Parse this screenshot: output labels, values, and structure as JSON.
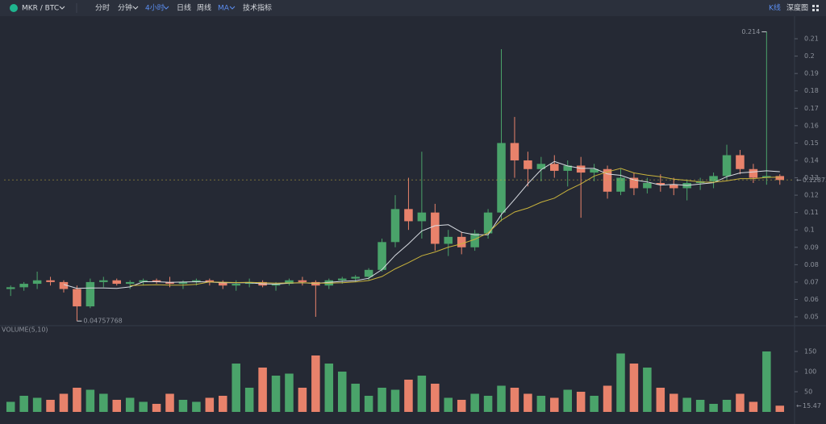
{
  "toolbar": {
    "pair": "MKR / BTC",
    "items": [
      "分时",
      "分钟",
      "4小时",
      "日线",
      "周线",
      "MA",
      "技术指标"
    ],
    "active": [
      "4小时",
      "MA"
    ],
    "right": [
      "K线",
      "深度图"
    ]
  },
  "chart_data": {
    "type": "candlestick",
    "up_color": "#4aa36a",
    "down_color": "#e8826b",
    "open": [
      0.066,
      0.067,
      0.069,
      0.071,
      0.07,
      0.066,
      0.056,
      0.07,
      0.071,
      0.069,
      0.07,
      0.071,
      0.07,
      0.069,
      0.07,
      0.071,
      0.07,
      0.068,
      0.069,
      0.07,
      0.068,
      0.069,
      0.071,
      0.07,
      0.068,
      0.071,
      0.072,
      0.073,
      0.077,
      0.093,
      0.112,
      0.105,
      0.11,
      0.092,
      0.096,
      0.09,
      0.098,
      0.11,
      0.15,
      0.14,
      0.135,
      0.138,
      0.134,
      0.137,
      0.133,
      0.135,
      0.122,
      0.13,
      0.124,
      0.127,
      0.126,
      0.124,
      0.127,
      0.128,
      0.131,
      0.143,
      0.135,
      0.13,
      0.131
    ],
    "high": [
      0.068,
      0.07,
      0.076,
      0.073,
      0.071,
      0.068,
      0.072,
      0.073,
      0.072,
      0.071,
      0.072,
      0.072,
      0.073,
      0.071,
      0.072,
      0.072,
      0.071,
      0.071,
      0.072,
      0.071,
      0.07,
      0.072,
      0.073,
      0.071,
      0.072,
      0.073,
      0.074,
      0.078,
      0.095,
      0.12,
      0.13,
      0.145,
      0.115,
      0.1,
      0.099,
      0.1,
      0.112,
      0.204,
      0.165,
      0.145,
      0.142,
      0.143,
      0.14,
      0.142,
      0.138,
      0.137,
      0.135,
      0.133,
      0.13,
      0.132,
      0.13,
      0.129,
      0.13,
      0.133,
      0.149,
      0.146,
      0.138,
      0.214,
      0.132
    ],
    "low": [
      0.062,
      0.065,
      0.066,
      0.068,
      0.064,
      0.04757768,
      0.055,
      0.067,
      0.068,
      0.066,
      0.068,
      0.069,
      0.067,
      0.066,
      0.068,
      0.068,
      0.066,
      0.065,
      0.067,
      0.067,
      0.065,
      0.068,
      0.068,
      0.05,
      0.066,
      0.069,
      0.07,
      0.071,
      0.076,
      0.09,
      0.1,
      0.095,
      0.088,
      0.085,
      0.086,
      0.088,
      0.095,
      0.105,
      0.13,
      0.125,
      0.128,
      0.13,
      0.125,
      0.107,
      0.128,
      0.118,
      0.12,
      0.12,
      0.121,
      0.122,
      0.12,
      0.117,
      0.123,
      0.124,
      0.129,
      0.132,
      0.127,
      0.126,
      0.126
    ],
    "close": [
      0.067,
      0.069,
      0.071,
      0.07,
      0.066,
      0.056,
      0.07,
      0.071,
      0.069,
      0.07,
      0.071,
      0.07,
      0.069,
      0.07,
      0.071,
      0.07,
      0.068,
      0.069,
      0.07,
      0.068,
      0.069,
      0.071,
      0.07,
      0.068,
      0.071,
      0.072,
      0.073,
      0.077,
      0.093,
      0.112,
      0.105,
      0.11,
      0.092,
      0.096,
      0.09,
      0.098,
      0.11,
      0.15,
      0.14,
      0.135,
      0.138,
      0.134,
      0.137,
      0.133,
      0.135,
      0.122,
      0.13,
      0.124,
      0.127,
      0.126,
      0.124,
      0.127,
      0.128,
      0.131,
      0.143,
      0.135,
      0.13,
      0.131,
      0.128732
    ],
    "volume": [
      25,
      40,
      35,
      30,
      45,
      60,
      55,
      45,
      30,
      35,
      25,
      20,
      45,
      30,
      25,
      35,
      40,
      120,
      60,
      110,
      90,
      95,
      60,
      140,
      120,
      100,
      70,
      40,
      60,
      55,
      80,
      90,
      70,
      35,
      30,
      45,
      40,
      65,
      60,
      45,
      40,
      35,
      55,
      50,
      40,
      65,
      145,
      120,
      110,
      60,
      45,
      35,
      30,
      20,
      30,
      45,
      25,
      150,
      15.47
    ],
    "ma_lines": [
      {
        "color": "#d9dde3",
        "values": [
          null,
          null,
          null,
          null,
          0.0686,
          0.0664,
          0.0666,
          0.0666,
          0.0664,
          0.0672,
          0.0702,
          0.0702,
          0.0698,
          0.07,
          0.0702,
          0.07,
          0.0696,
          0.0696,
          0.0696,
          0.069,
          0.0688,
          0.0694,
          0.0696,
          0.0692,
          0.0698,
          0.0704,
          0.0708,
          0.0722,
          0.0772,
          0.0854,
          0.092,
          0.0994,
          0.1024,
          0.103,
          0.0986,
          0.0972,
          0.0972,
          0.1088,
          0.1176,
          0.1266,
          0.1346,
          0.1394,
          0.1368,
          0.1354,
          0.1354,
          0.1322,
          0.1314,
          0.1288,
          0.1276,
          0.1258,
          0.1262,
          0.1256,
          0.1264,
          0.1272,
          0.1306,
          0.1328,
          0.1334,
          0.134,
          0.1335
        ]
      },
      {
        "color": "#c9b33c",
        "values": [
          null,
          null,
          null,
          null,
          null,
          null,
          null,
          null,
          null,
          0.0679,
          0.0683,
          0.0684,
          0.0682,
          0.0682,
          0.0687,
          0.0701,
          0.0699,
          0.0697,
          0.0698,
          0.0696,
          0.0694,
          0.0695,
          0.0696,
          0.0694,
          0.0694,
          0.0696,
          0.0701,
          0.0709,
          0.0732,
          0.0776,
          0.0812,
          0.0851,
          0.0873,
          0.0901,
          0.092,
          0.0946,
          0.0983,
          0.1056,
          0.1103,
          0.1126,
          0.1159,
          0.1183,
          0.1228,
          0.1265,
          0.131,
          0.1334,
          0.1354,
          0.1328,
          0.1315,
          0.1306,
          0.1292,
          0.1285,
          0.1276,
          0.1274,
          0.1282,
          0.1295,
          0.1295,
          0.1302,
          0.1304
        ]
      }
    ],
    "ylim": [
      0.045,
      0.22
    ],
    "yticks": [
      0.05,
      0.06,
      0.07,
      0.08,
      0.09,
      0.1,
      0.11,
      0.12,
      0.13,
      0.14,
      0.15,
      0.16,
      0.17,
      0.18,
      0.19,
      0.2,
      0.21
    ],
    "volume_title": "VOLUME(5,10)",
    "volume_ylim": [
      0,
      196
    ],
    "volume_yticks": [
      50,
      100,
      150
    ]
  }
}
